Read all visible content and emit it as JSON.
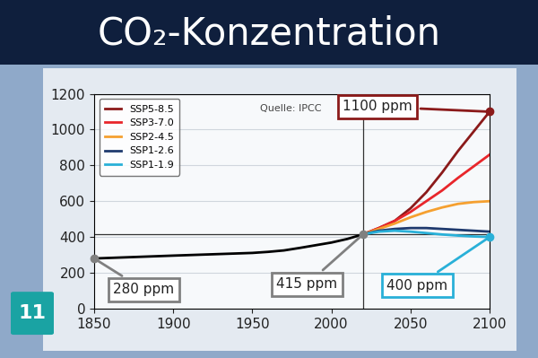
{
  "chart_data": {
    "type": "line",
    "title": "CO₂-Konzentration",
    "source": "Quelle: IPCC",
    "badge": "11",
    "xlim": [
      1850,
      2100
    ],
    "xticks": [
      1850,
      1900,
      1950,
      2000,
      2050,
      2100
    ],
    "ylim": [
      0,
      1200
    ],
    "yticks": [
      0,
      200,
      400,
      600,
      800,
      1000,
      1200
    ],
    "grid": true,
    "legend": "upper left",
    "series": [
      {
        "color": "#000000",
        "x": [
          1850,
          1900,
          1950,
          1960,
          1970,
          1980,
          1990,
          2000,
          2010,
          2020
        ],
        "values": [
          280,
          296,
          311,
          317,
          325,
          339,
          354,
          369,
          389,
          415
        ]
      },
      {
        "name": "SSP5-8.5",
        "color": "#8b1a1a",
        "x": [
          2020,
          2030,
          2040,
          2050,
          2060,
          2070,
          2080,
          2090,
          2100
        ],
        "values": [
          415,
          450,
          490,
          560,
          650,
          760,
          880,
          990,
          1100
        ]
      },
      {
        "name": "SSP3-7.0",
        "color": "#e8262b",
        "x": [
          2020,
          2030,
          2040,
          2050,
          2060,
          2070,
          2080,
          2090,
          2100
        ],
        "values": [
          415,
          450,
          490,
          540,
          600,
          660,
          730,
          795,
          860
        ]
      },
      {
        "name": "SSP2-4.5",
        "color": "#f5a030",
        "x": [
          2020,
          2030,
          2040,
          2050,
          2060,
          2070,
          2080,
          2090,
          2100
        ],
        "values": [
          415,
          445,
          475,
          510,
          540,
          565,
          585,
          595,
          600
        ]
      },
      {
        "name": "SSP1-2.6",
        "color": "#1f3a6e",
        "x": [
          2020,
          2030,
          2040,
          2050,
          2060,
          2070,
          2080,
          2090,
          2100
        ],
        "values": [
          415,
          435,
          445,
          450,
          450,
          445,
          440,
          435,
          430
        ]
      },
      {
        "name": "SSP1-1.9",
        "color": "#29b0d8",
        "x": [
          2020,
          2030,
          2040,
          2050,
          2060,
          2070,
          2080,
          2090,
          2100
        ],
        "values": [
          415,
          430,
          435,
          430,
          422,
          414,
          408,
          403,
          400
        ]
      }
    ],
    "annotations": [
      {
        "text": "280 ppm",
        "x": 1850,
        "y": 280,
        "color": "#808080"
      },
      {
        "text": "415 ppm",
        "x": 2020,
        "y": 415,
        "color": "#808080"
      },
      {
        "text": "400 ppm",
        "x": 2100,
        "y": 400,
        "color": "#29b0d8"
      },
      {
        "text": "1100 ppm",
        "x": 2100,
        "y": 1100,
        "color": "#8b1a1a"
      }
    ]
  }
}
